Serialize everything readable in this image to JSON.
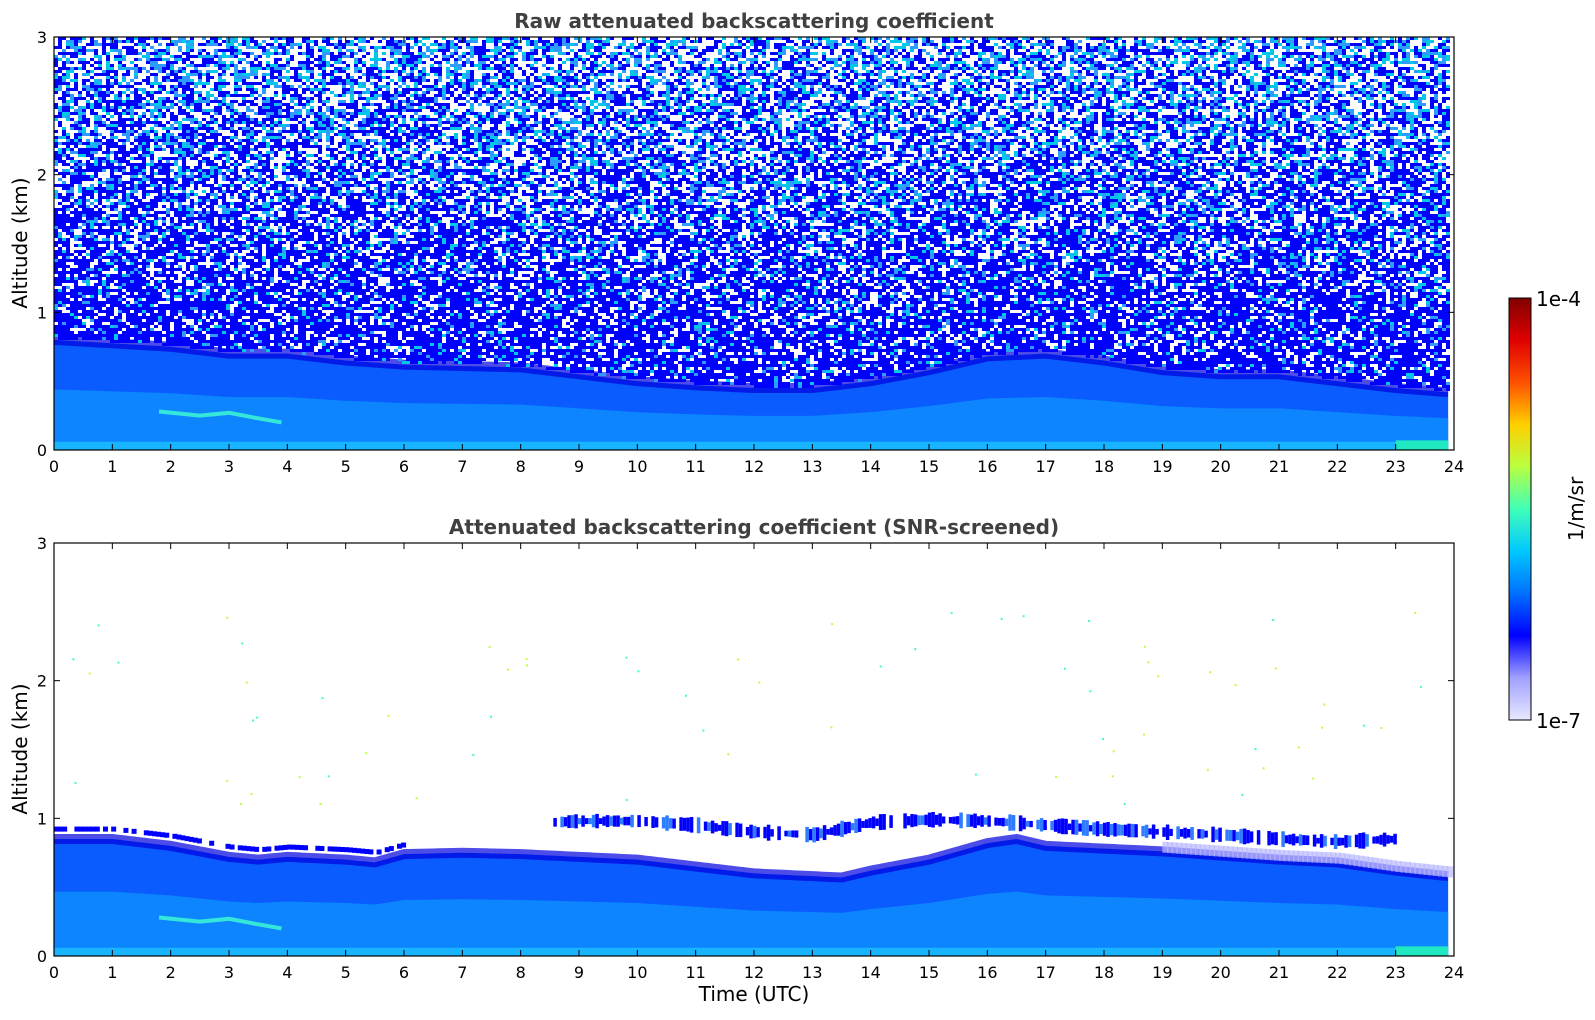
{
  "chart_data": [
    {
      "type": "heatmap",
      "title": "Raw attenuated backscattering coefficient",
      "xlabel": "",
      "ylabel": "Altitude (km)",
      "xlim": [
        0,
        24
      ],
      "ylim": [
        0,
        3
      ],
      "xticks": [
        "0",
        "1",
        "2",
        "3",
        "4",
        "5",
        "6",
        "7",
        "8",
        "9",
        "10",
        "11",
        "12",
        "13",
        "14",
        "15",
        "16",
        "17",
        "18",
        "19",
        "20",
        "21",
        "22",
        "23",
        "24"
      ],
      "yticks": [
        "0",
        "1",
        "2",
        "3"
      ],
      "data_end_x": 23.9,
      "screened": false,
      "boundary_layer_top_km": {
        "x": [
          0,
          2,
          3,
          4,
          5,
          6,
          8,
          10,
          11,
          12,
          13,
          14,
          15,
          16,
          17,
          18,
          19,
          20,
          21,
          22,
          23,
          23.9
        ],
        "y": [
          0.8,
          0.75,
          0.7,
          0.7,
          0.65,
          0.62,
          0.6,
          0.5,
          0.47,
          0.45,
          0.45,
          0.5,
          0.58,
          0.68,
          0.7,
          0.65,
          0.58,
          0.55,
          0.55,
          0.5,
          0.45,
          0.42
        ]
      },
      "aerosol_layer": {
        "x": [
          1.8,
          2.5,
          3.0,
          3.5,
          3.9
        ],
        "y_km": [
          0.28,
          0.25,
          0.27,
          0.23,
          0.2
        ]
      }
    },
    {
      "type": "heatmap",
      "title": "Attenuated backscattering coefficient (SNR-screened)",
      "xlabel": "Time (UTC)",
      "ylabel": "Altitude (km)",
      "xlim": [
        0,
        24
      ],
      "ylim": [
        0,
        3
      ],
      "xticks": [
        "0",
        "1",
        "2",
        "3",
        "4",
        "5",
        "6",
        "7",
        "8",
        "9",
        "10",
        "11",
        "12",
        "13",
        "14",
        "15",
        "16",
        "17",
        "18",
        "19",
        "20",
        "21",
        "22",
        "23",
        "24"
      ],
      "yticks": [
        "0",
        "1",
        "2",
        "3"
      ],
      "data_end_x": 23.9,
      "screened": true,
      "boundary_layer_top_km": {
        "x": [
          0,
          1,
          2,
          3,
          3.5,
          4,
          5,
          5.5,
          6,
          7,
          8,
          9,
          10,
          11,
          12,
          13,
          13.5,
          14,
          15,
          16,
          16.5,
          17,
          18,
          19,
          20,
          21,
          22,
          23,
          23.9
        ],
        "y": [
          0.85,
          0.85,
          0.8,
          0.72,
          0.7,
          0.72,
          0.7,
          0.68,
          0.74,
          0.75,
          0.74,
          0.72,
          0.7,
          0.65,
          0.6,
          0.58,
          0.57,
          0.62,
          0.7,
          0.82,
          0.85,
          0.8,
          0.78,
          0.76,
          0.73,
          0.7,
          0.68,
          0.62,
          0.58
        ]
      },
      "elevated_layer": {
        "x": [
          8.5,
          9,
          10,
          11,
          12,
          13,
          14,
          15,
          16,
          17,
          18,
          19,
          20,
          21,
          22,
          23
        ],
        "y_km": [
          0.97,
          0.98,
          0.98,
          0.95,
          0.9,
          0.88,
          0.97,
          0.99,
          0.98,
          0.95,
          0.92,
          0.9,
          0.88,
          0.85,
          0.83,
          0.85
        ]
      },
      "aerosol_layer": {
        "x": [
          1.8,
          2.5,
          3.0,
          3.5,
          3.9
        ],
        "y_km": [
          0.28,
          0.25,
          0.27,
          0.23,
          0.2
        ]
      }
    }
  ],
  "colorbar": {
    "label": "1/m/sr",
    "min_label": "1e-7",
    "max_label": "1e-4",
    "colormap": "jet",
    "colors": [
      "#e8e8ff",
      "#a0a0ff",
      "#0000ff",
      "#0070ff",
      "#00c8ff",
      "#40ffb8",
      "#b8ff40",
      "#ffd000",
      "#ff5000",
      "#e00000",
      "#800000"
    ]
  }
}
